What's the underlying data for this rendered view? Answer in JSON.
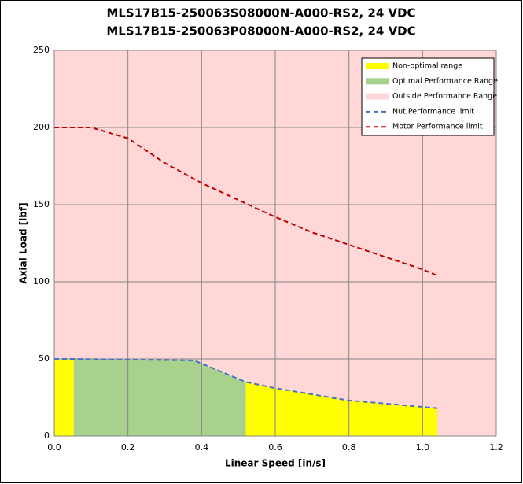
{
  "chart_data": {
    "type": "line",
    "title": "MLS17B15-250063S08000N-A000-RS2, 24 VDC",
    "subtitle": "MLS17B15-250063P08000N-A000-RS2, 24 VDC",
    "x_label": "Linear Speed [in/s]",
    "y_label": "Axial Load [lbf]",
    "xlim": [
      0,
      1.2
    ],
    "xticks": [
      {
        "value": 0,
        "label": "0.0"
      },
      {
        "value": 0.2,
        "label": "0.2"
      },
      {
        "value": 0.4,
        "label": "0.4"
      },
      {
        "value": 0.6,
        "label": "0.6"
      },
      {
        "value": 0.8,
        "label": "0.8"
      },
      {
        "value": 1,
        "label": "1.0"
      },
      {
        "value": 1.2,
        "label": "1.2"
      }
    ],
    "ylim": [
      0,
      250
    ],
    "yticks": [
      0,
      50,
      100,
      150,
      200,
      250
    ],
    "grid": true,
    "legend": "top-right",
    "series": [
      {
        "name": "Non-optimal range",
        "kind": "area",
        "color": "#ffff00",
        "x": [
          0,
          0.053,
          0.38,
          0.4,
          0.52,
          0.6,
          0.7,
          0.8,
          0.9,
          1.04
        ],
        "values": [
          50,
          50,
          null,
          null,
          35,
          31,
          27,
          23,
          21,
          18
        ]
      },
      {
        "name": "Optimal Performance Range",
        "kind": "area",
        "color": "#a9d18e",
        "x": [
          0,
          0.053,
          0.38,
          0.4,
          0.52,
          0.6,
          0.7,
          0.8,
          0.9,
          1.04
        ],
        "values": [
          null,
          50,
          49,
          47,
          35,
          null,
          null,
          null,
          null,
          null
        ]
      },
      {
        "name": "Outside Performance Range",
        "kind": "background",
        "color": "#ffd7d7"
      },
      {
        "name": "Nut Performance limit",
        "kind": "line",
        "dash": true,
        "color": "#4472c4",
        "x": [
          0,
          0.053,
          0.38,
          0.4,
          0.52,
          0.6,
          0.7,
          0.8,
          0.9,
          1.04
        ],
        "values": [
          50,
          50,
          49,
          47,
          35,
          31,
          27,
          23,
          21,
          18
        ]
      },
      {
        "name": "Motor Performance limit",
        "kind": "line",
        "dash": true,
        "color": "#c00000",
        "x": [
          0,
          0.1,
          0.2,
          0.3,
          0.4,
          0.5,
          0.6,
          0.7,
          0.8,
          0.9,
          1.0,
          1.04
        ],
        "values": [
          200,
          200,
          193,
          177,
          164,
          153,
          142,
          132,
          124,
          116,
          108,
          104
        ]
      }
    ]
  }
}
